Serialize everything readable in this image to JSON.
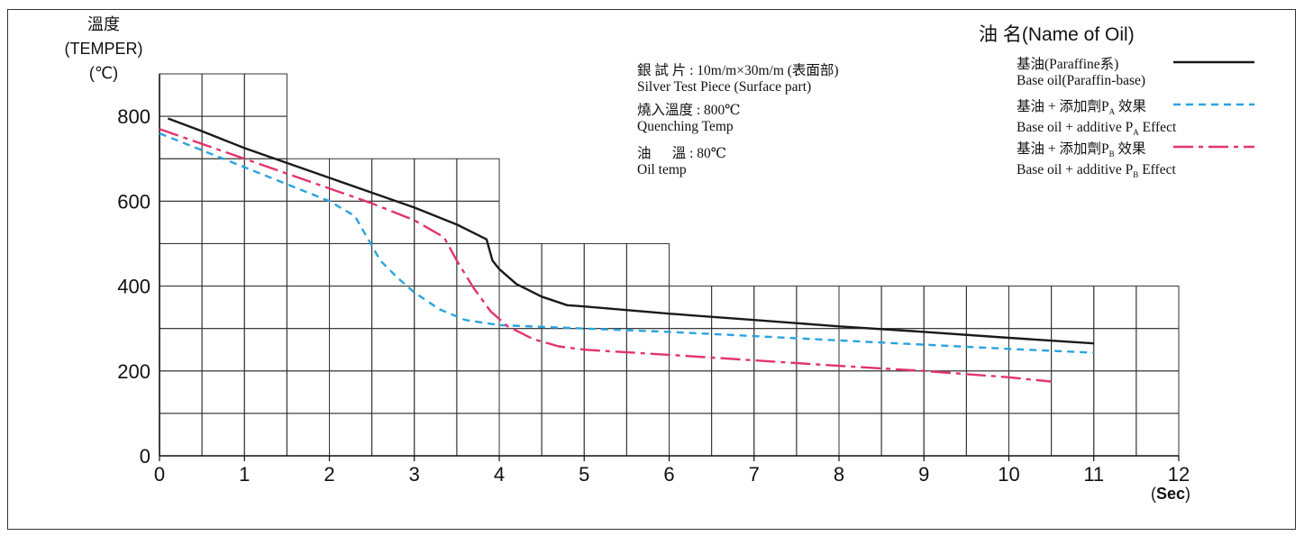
{
  "y_axis": {
    "label_line1": "溫度",
    "label_line2": "(TEMPER)",
    "label_line3": "(℃)"
  },
  "x_axis": {
    "unit_open": "(",
    "unit": "Sec",
    "unit_close": ")"
  },
  "info": {
    "line1": "銀 試 片 : 10m/m×30m/m (表面部)",
    "line2": "Silver Test Piece  (Surface part)",
    "line3": "燒入溫度 : 800℃",
    "line4": "Quenching Temp",
    "line5": "油      溫 : 80℃",
    "line6": "Oil temp"
  },
  "legend": {
    "title": "油 名(Name of Oil)",
    "items": [
      {
        "line1": "基油(Paraffine系)",
        "line2": "Base oil(Paraffin-base)"
      },
      {
        "line1": "基油 + 添加劑P",
        "sub1": "A",
        "line1b": " 效果",
        "line2": "Base oil + additive P",
        "sub2": "A",
        "line2b": " Effect"
      },
      {
        "line1": "基油 + 添加劑P",
        "sub1": "B",
        "line1b": " 效果",
        "line2": "Base oil + additive P",
        "sub2": "B",
        "line2b": " Effect"
      }
    ]
  },
  "chart_data": {
    "type": "line",
    "title": "",
    "xlabel": "",
    "ylabel": "溫度 (TEMPER) (℃)",
    "xlim": [
      0,
      12
    ],
    "ylim": [
      0,
      900
    ],
    "x_ticks": [
      0,
      1,
      2,
      3,
      4,
      5,
      6,
      7,
      8,
      9,
      10,
      11,
      12
    ],
    "y_ticks": [
      0,
      200,
      400,
      600,
      800
    ],
    "grid": true,
    "grid_profile": [
      {
        "x": [
          0,
          1.5
        ],
        "ymax": 900
      },
      {
        "x": [
          1.5,
          4
        ],
        "ymax": 700
      },
      {
        "x": [
          4,
          6
        ],
        "ymax": 500
      },
      {
        "x": [
          6,
          11
        ],
        "ymax": 400
      },
      {
        "x": [
          11,
          12
        ],
        "ymax": 400
      }
    ],
    "legend_position": "top-right",
    "series": [
      {
        "name": "基油(Paraffine系)",
        "color": "#1a1a1a",
        "style": "solid",
        "points": [
          [
            0.1,
            795
          ],
          [
            0.5,
            765
          ],
          [
            1,
            725
          ],
          [
            1.5,
            690
          ],
          [
            2,
            655
          ],
          [
            2.5,
            620
          ],
          [
            3,
            585
          ],
          [
            3.5,
            545
          ],
          [
            3.85,
            510
          ],
          [
            3.92,
            460
          ],
          [
            4,
            440
          ],
          [
            4.2,
            405
          ],
          [
            4.5,
            375
          ],
          [
            4.8,
            355
          ],
          [
            5,
            352
          ],
          [
            6,
            335
          ],
          [
            7,
            320
          ],
          [
            8,
            305
          ],
          [
            9,
            292
          ],
          [
            10,
            278
          ],
          [
            11,
            265
          ]
        ]
      },
      {
        "name": "基油 + 添加劑PA 效果",
        "color": "#2aa3df",
        "style": "dashed",
        "points": [
          [
            0,
            760
          ],
          [
            0.5,
            720
          ],
          [
            1,
            680
          ],
          [
            1.5,
            640
          ],
          [
            2,
            600
          ],
          [
            2.3,
            565
          ],
          [
            2.4,
            530
          ],
          [
            2.6,
            460
          ],
          [
            2.8,
            420
          ],
          [
            3,
            385
          ],
          [
            3.3,
            345
          ],
          [
            3.6,
            320
          ],
          [
            4,
            308
          ],
          [
            5,
            300
          ],
          [
            6,
            292
          ],
          [
            7,
            282
          ],
          [
            8,
            272
          ],
          [
            9,
            262
          ],
          [
            10,
            252
          ],
          [
            11,
            243
          ]
        ]
      },
      {
        "name": "基油 + 添加劑PB 效果",
        "color": "#e23370",
        "style": "dashdot",
        "points": [
          [
            0,
            770
          ],
          [
            0.5,
            735
          ],
          [
            1,
            700
          ],
          [
            1.5,
            665
          ],
          [
            2,
            630
          ],
          [
            2.5,
            595
          ],
          [
            3,
            555
          ],
          [
            3.35,
            515
          ],
          [
            3.5,
            460
          ],
          [
            3.7,
            395
          ],
          [
            3.9,
            340
          ],
          [
            4.1,
            305
          ],
          [
            4.4,
            275
          ],
          [
            4.7,
            258
          ],
          [
            5,
            250
          ],
          [
            6,
            238
          ],
          [
            7,
            225
          ],
          [
            8,
            212
          ],
          [
            9,
            200
          ],
          [
            10,
            185
          ],
          [
            10.5,
            175
          ]
        ]
      }
    ]
  }
}
